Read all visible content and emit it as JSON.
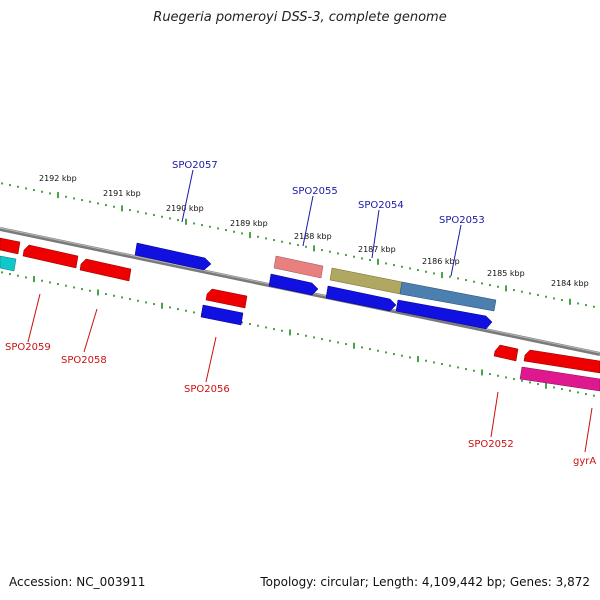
{
  "title": "Ruegeria pomeroyi DSS-3, complete genome",
  "footer": {
    "accession": "Accession: NC_003911",
    "summary": "Topology: circular; Length: 4,109,442 bp; Genes: 3,872"
  },
  "scale_labels": [
    "2192 kbp",
    "2191 kbp",
    "2190 kbp",
    "2189 kbp",
    "2188 kbp",
    "2187 kbp",
    "2186 kbp",
    "2185 kbp",
    "2184 kbp"
  ],
  "gene_labels": {
    "top": [
      "SPO2057",
      "SPO2055",
      "SPO2054",
      "SPO2053"
    ],
    "bottom": [
      "SPO2059",
      "SPO2058",
      "SPO2056",
      "SPO2052",
      "gyrA"
    ]
  },
  "colors": {
    "forward": "#0000ee",
    "reverse": "#ee0000",
    "backbone": "#888888",
    "tick": "#1a8a1a",
    "pink": "#e88080",
    "olive": "#b0a860",
    "steel": "#4a7fb0",
    "magenta": "#e01890",
    "cyan": "#10c8c8"
  }
}
